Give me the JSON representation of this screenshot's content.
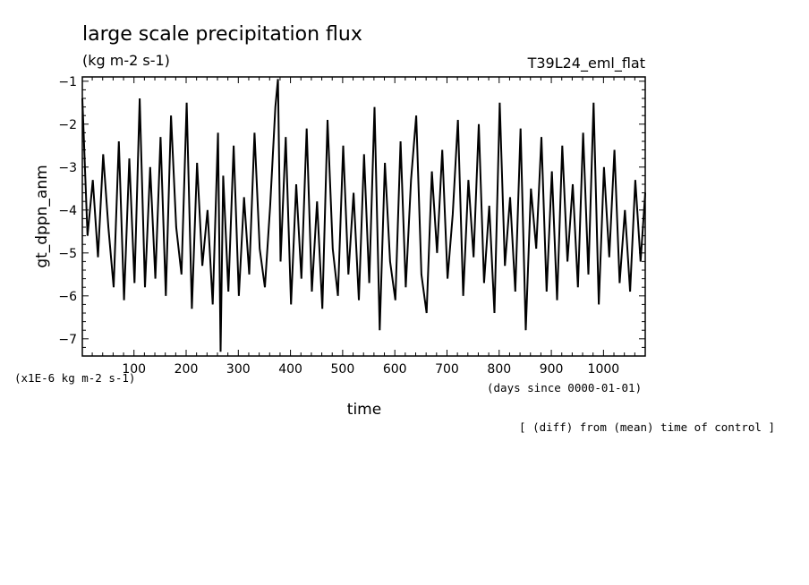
{
  "chart_data": {
    "type": "line",
    "title": "large scale precipitation flux",
    "units": "(kg m-2 s-1)",
    "run_name": "T39L24_eml_flat",
    "xlabel": "time",
    "ylabel": "gt_dppn_anm",
    "y_scale_note": "(x1E-6 kg m-2 s-1)",
    "x_units_note": "(days since 0000-01-01)",
    "footer_note": "[ (diff) from (mean) time of control ]",
    "xlim": [
      1,
      1080
    ],
    "ylim": [
      -7.4,
      -0.9
    ],
    "x_ticks": [
      100,
      200,
      300,
      400,
      500,
      600,
      700,
      800,
      900,
      1000
    ],
    "y_ticks": [
      -1,
      -2,
      -3,
      -4,
      -5,
      -6,
      -7
    ],
    "series": [
      {
        "x": [
          1,
          11,
          21,
          31,
          41,
          51,
          61,
          71,
          81,
          91,
          101,
          111,
          121,
          131,
          141,
          151,
          161,
          171,
          181,
          191,
          201,
          211,
          221,
          231,
          241,
          251,
          261,
          266,
          271,
          281,
          291,
          301,
          311,
          321,
          331,
          341,
          351,
          361,
          371,
          376,
          381,
          391,
          401,
          411,
          421,
          431,
          441,
          451,
          461,
          471,
          481,
          491,
          501,
          511,
          521,
          531,
          541,
          551,
          561,
          571,
          581,
          591,
          601,
          611,
          621,
          631,
          641,
          651,
          661,
          671,
          681,
          691,
          701,
          711,
          721,
          731,
          741,
          751,
          761,
          771,
          781,
          791,
          801,
          811,
          821,
          831,
          841,
          851,
          861,
          871,
          881,
          891,
          901,
          911,
          921,
          931,
          941,
          951,
          961,
          971,
          981,
          991,
          1001,
          1011,
          1021,
          1031,
          1041,
          1051,
          1061,
          1071,
          1080
        ],
        "y": [
          -1.4,
          -4.6,
          -3.3,
          -5.1,
          -2.7,
          -4.4,
          -5.8,
          -2.4,
          -6.1,
          -2.8,
          -5.7,
          -1.4,
          -5.8,
          -3.0,
          -5.6,
          -2.3,
          -6.0,
          -1.8,
          -4.4,
          -5.5,
          -1.5,
          -6.3,
          -2.9,
          -5.3,
          -4.0,
          -6.2,
          -2.2,
          -7.3,
          -3.2,
          -5.9,
          -2.5,
          -6.0,
          -3.7,
          -5.5,
          -2.2,
          -4.9,
          -5.8,
          -3.9,
          -1.6,
          -0.95,
          -5.2,
          -2.3,
          -6.2,
          -3.4,
          -5.6,
          -2.1,
          -5.9,
          -3.8,
          -6.3,
          -1.9,
          -4.9,
          -6.0,
          -2.5,
          -5.5,
          -3.6,
          -6.1,
          -2.7,
          -5.7,
          -1.6,
          -6.8,
          -2.9,
          -5.2,
          -6.1,
          -2.4,
          -5.8,
          -3.3,
          -1.8,
          -5.5,
          -6.4,
          -3.1,
          -5.0,
          -2.6,
          -5.6,
          -4.1,
          -1.9,
          -6.0,
          -3.3,
          -5.1,
          -2.0,
          -5.7,
          -3.9,
          -6.4,
          -1.5,
          -5.3,
          -3.7,
          -5.9,
          -2.1,
          -6.8,
          -3.5,
          -4.9,
          -2.3,
          -5.9,
          -3.1,
          -6.1,
          -2.5,
          -5.2,
          -3.4,
          -5.8,
          -2.2,
          -5.5,
          -1.5,
          -6.2,
          -3.0,
          -5.1,
          -2.6,
          -5.7,
          -4.0,
          -5.9,
          -3.3,
          -5.2,
          -3.6
        ]
      }
    ],
    "grid": false,
    "legend": "none"
  }
}
